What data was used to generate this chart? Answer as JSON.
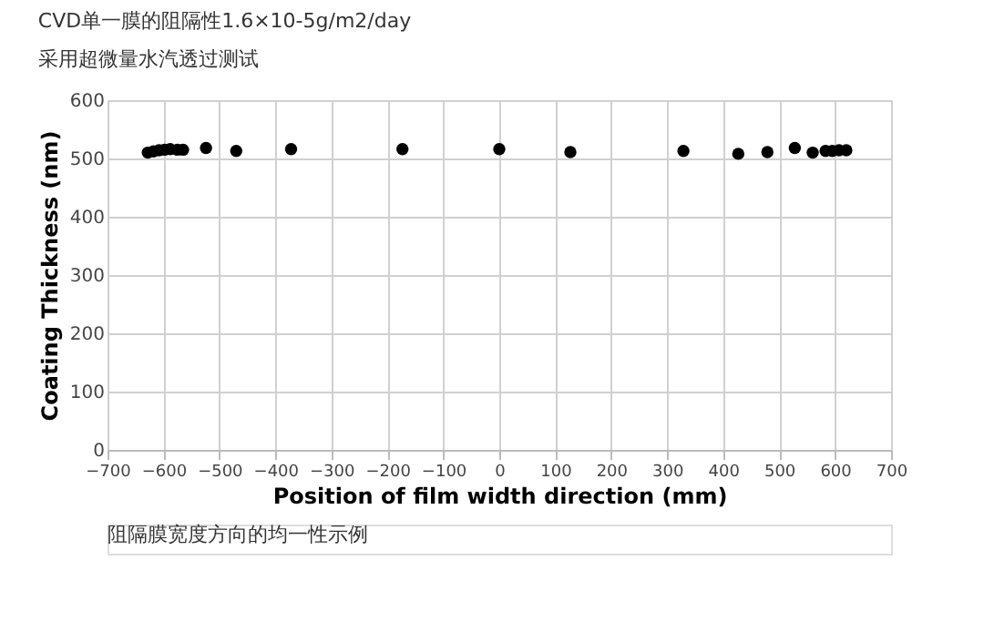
{
  "chart_data": {
    "type": "scatter",
    "title": "CVD单一膜的阻隔性1.6×10-5g/m2/day",
    "subtitle": "采用超微量水汽透过测试",
    "xlabel": "Position of film width direction (mm)",
    "ylabel": "Coating Thickness (nm)",
    "annotations": [
      "阻隔膜宽度方向的均一性示例"
    ],
    "x": [
      -628,
      -618,
      -608,
      -598,
      -588,
      -575,
      -565,
      -524,
      -470,
      -372,
      -173,
      0,
      127,
      329,
      427,
      479,
      528,
      560,
      583,
      595,
      607,
      620
    ],
    "series": [
      {
        "color": "#000000",
        "values": [
          510,
          512,
          514,
          515,
          516,
          515,
          515,
          518,
          513,
          516,
          516,
          516,
          511,
          513,
          508,
          511,
          518,
          510,
          513,
          513,
          514,
          514
        ]
      }
    ],
    "xlim": [
      -700,
      700
    ],
    "xticks": [
      -700,
      -600,
      -500,
      -400,
      -300,
      -200,
      -100,
      0,
      100,
      200,
      300,
      400,
      500,
      600,
      700
    ],
    "ylim": [
      0,
      600
    ],
    "yticks": [
      0,
      100,
      200,
      300,
      400,
      500,
      600
    ],
    "grid": true,
    "marker": "circle",
    "legend": false
  }
}
